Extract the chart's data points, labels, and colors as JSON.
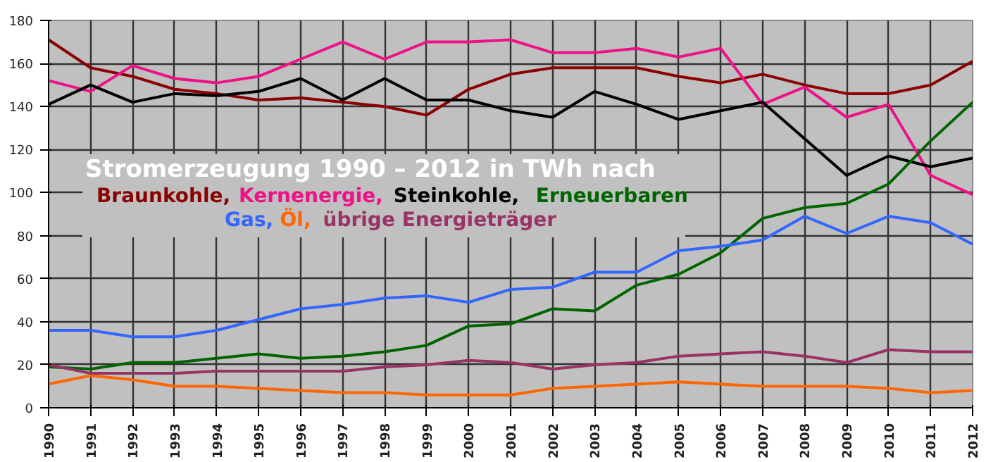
{
  "chart_data": {
    "type": "line",
    "title": "Stromerzeugung 1990 – 2012 in TWh nach",
    "x": [
      1990,
      1991,
      1992,
      1993,
      1994,
      1995,
      1996,
      1997,
      1998,
      1999,
      2000,
      2001,
      2002,
      2003,
      2004,
      2005,
      2006,
      2007,
      2008,
      2009,
      2010,
      2011,
      2012
    ],
    "xlim": [
      1990,
      2012
    ],
    "xticks": [
      1990,
      1991,
      1992,
      1993,
      1994,
      1995,
      1996,
      1997,
      1998,
      1999,
      2000,
      2001,
      2002,
      2003,
      2004,
      2005,
      2006,
      2007,
      2008,
      2009,
      2010,
      2011,
      2012
    ],
    "ylim": [
      0,
      180
    ],
    "yticks": [
      0,
      20,
      40,
      60,
      80,
      100,
      120,
      140,
      160,
      180
    ],
    "grid": true,
    "legend": "center",
    "marker": "none",
    "line_style": "solid",
    "series": [
      {
        "name": "Braunkohle,",
        "color": "#8b0000",
        "values": [
          171,
          158,
          154,
          148,
          146,
          143,
          144,
          142,
          140,
          136,
          148,
          155,
          158,
          158,
          158,
          154,
          151,
          155,
          150,
          146,
          146,
          150,
          161
        ]
      },
      {
        "name": "Kernenergie,",
        "color": "#ee1188",
        "values": [
          152,
          147,
          159,
          153,
          151,
          154,
          162,
          170,
          162,
          170,
          170,
          171,
          165,
          165,
          167,
          163,
          167,
          141,
          149,
          135,
          141,
          108,
          99
        ]
      },
      {
        "name": "Steinkohle,",
        "color": "#000000",
        "values": [
          141,
          150,
          142,
          146,
          145,
          147,
          153,
          143,
          153,
          143,
          143,
          138,
          135,
          147,
          141,
          134,
          138,
          142,
          125,
          108,
          117,
          112,
          116
        ]
      },
      {
        "name": "Erneuerbaren",
        "color": "#006400",
        "values": [
          19,
          18,
          21,
          21,
          23,
          25,
          23,
          24,
          26,
          29,
          38,
          39,
          46,
          45,
          57,
          62,
          72,
          88,
          93,
          95,
          104,
          124,
          142
        ]
      },
      {
        "name": "Gas,",
        "color": "#3366ff",
        "values": [
          36,
          36,
          33,
          33,
          36,
          41,
          46,
          48,
          51,
          52,
          49,
          55,
          56,
          63,
          63,
          73,
          75,
          78,
          89,
          81,
          89,
          86,
          76
        ]
      },
      {
        "name": "Öl,",
        "color": "#ff6600",
        "values": [
          11,
          15,
          13,
          10,
          10,
          9,
          8,
          7,
          7,
          6,
          6,
          6,
          9,
          10,
          11,
          12,
          11,
          10,
          10,
          10,
          9,
          7,
          8
        ]
      },
      {
        "name": "übrige Energieträger",
        "color": "#993366",
        "values": [
          20,
          16,
          16,
          16,
          17,
          17,
          17,
          17,
          19,
          20,
          22,
          21,
          18,
          20,
          21,
          24,
          25,
          26,
          24,
          21,
          27,
          26,
          26
        ]
      }
    ]
  }
}
